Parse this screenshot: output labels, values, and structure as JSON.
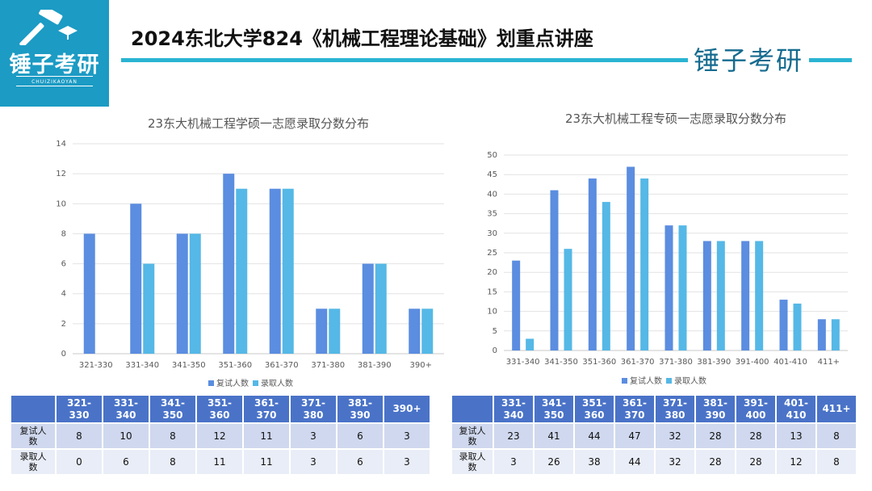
{
  "brand": {
    "logo_text": "锤子考研",
    "logo_sub": "CHUIZIKAOYAN",
    "signature": "锤子考研"
  },
  "header": {
    "title": "2024东北大学824《机械工程理论基础》划重点讲座"
  },
  "colors": {
    "fushi": "#5b8de0",
    "luqu": "#55b8e6",
    "logo_bg": "#1c9bc4",
    "accent_line": "#2ab4d2",
    "table_header": "#4a73c8"
  },
  "chart_data": [
    {
      "type": "bar",
      "title": "23东大机械工程学硕一志愿录取分数分布",
      "categories": [
        "321-330",
        "331-340",
        "341-350",
        "351-360",
        "361-370",
        "371-380",
        "381-390",
        "390+"
      ],
      "series": [
        {
          "name": "复试人数",
          "values": [
            8,
            10,
            8,
            12,
            11,
            3,
            6,
            3
          ]
        },
        {
          "name": "录取人数",
          "values": [
            0,
            6,
            8,
            11,
            11,
            3,
            6,
            3
          ]
        }
      ],
      "ylim": [
        0,
        14
      ],
      "yticks": [
        0,
        2,
        4,
        6,
        8,
        10,
        12,
        14
      ],
      "legend": "bottom",
      "grid": true
    },
    {
      "type": "bar",
      "title": "23东大机械工程专硕一志愿录取分数分布",
      "categories": [
        "331-340",
        "341-350",
        "351-360",
        "361-370",
        "371-380",
        "381-390",
        "391-400",
        "401-410",
        "411+"
      ],
      "series": [
        {
          "name": "复试人数",
          "values": [
            23,
            41,
            44,
            47,
            32,
            28,
            28,
            13,
            8
          ]
        },
        {
          "name": "录取人数",
          "values": [
            3,
            26,
            38,
            44,
            32,
            28,
            28,
            12,
            8
          ]
        }
      ],
      "ylim": [
        0,
        50
      ],
      "yticks": [
        0,
        5,
        10,
        15,
        20,
        25,
        30,
        35,
        40,
        45,
        50
      ],
      "legend": "bottom",
      "grid": true
    }
  ],
  "tables": [
    {
      "headers": [
        "",
        "321-\n330",
        "331-\n340",
        "341-\n350",
        "351-\n360",
        "361-\n370",
        "371-\n380",
        "381-\n390",
        "390+"
      ],
      "rows": [
        {
          "label": "复试人\n数",
          "values": [
            "8",
            "10",
            "8",
            "12",
            "11",
            "3",
            "6",
            "3"
          ]
        },
        {
          "label": "录取人\n数",
          "values": [
            "0",
            "6",
            "8",
            "11",
            "11",
            "3",
            "6",
            "3"
          ]
        }
      ]
    },
    {
      "headers": [
        "",
        "331-\n340",
        "341-\n350",
        "351-\n360",
        "361-\n370",
        "371-\n380",
        "381-\n390",
        "391-\n400",
        "401-\n410",
        "411+"
      ],
      "rows": [
        {
          "label": "复试人\n数",
          "values": [
            "23",
            "41",
            "44",
            "47",
            "32",
            "28",
            "28",
            "13",
            "8"
          ]
        },
        {
          "label": "录取人\n数",
          "values": [
            "3",
            "26",
            "38",
            "44",
            "32",
            "28",
            "28",
            "12",
            "8"
          ]
        }
      ]
    }
  ]
}
